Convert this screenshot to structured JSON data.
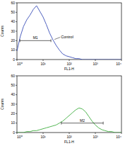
{
  "chart_data": [
    {
      "type": "line",
      "log": "x",
      "xlabel": "FL1-H",
      "ylabel": "Counts",
      "x": [
        1,
        1.33,
        1.78,
        2.37,
        3.16,
        4.22,
        5.62,
        7.5,
        10,
        13.3,
        17.8,
        23.7,
        31.6,
        42.2,
        56.2,
        75,
        100,
        133,
        178,
        237,
        316,
        422,
        562,
        750,
        1000,
        1330,
        1780,
        2370,
        3160,
        4220,
        5620,
        7500,
        10000
      ],
      "series": [
        {
          "name": "Control",
          "color": "#3b4fb8",
          "values": [
            9,
            24,
            35,
            42,
            47,
            53,
            57,
            51,
            45,
            37,
            28,
            21,
            15,
            10,
            6,
            4,
            3,
            2,
            1,
            1,
            0,
            0,
            0,
            0,
            0,
            0,
            0,
            0,
            0,
            0,
            0,
            0,
            0
          ]
        }
      ],
      "xlim": [
        1,
        10000
      ],
      "ylim": [
        0,
        60
      ],
      "xticks": [
        {
          "value": 1,
          "label": "10⁰"
        },
        {
          "value": 10,
          "label": "10¹"
        },
        {
          "value": 100,
          "label": "10²"
        },
        {
          "value": 1000,
          "label": "10³"
        },
        {
          "value": 10000,
          "label": "10⁴"
        }
      ],
      "yticks": [
        0,
        10,
        20,
        30,
        40,
        50,
        60
      ],
      "gates": [
        {
          "label": "M1",
          "x": [
            1.3,
            20
          ],
          "y": 20
        }
      ]
    },
    {
      "type": "line",
      "log": "x",
      "xlabel": "FL1-H",
      "ylabel": "Counts",
      "x": [
        1,
        1.33,
        1.78,
        2.37,
        3.16,
        4.22,
        5.62,
        7.5,
        10,
        13.3,
        17.8,
        23.7,
        31.6,
        42.2,
        56.2,
        75,
        100,
        133,
        178,
        237,
        316,
        422,
        562,
        750,
        1000,
        1330,
        1780,
        2370,
        3160,
        4220,
        5620,
        7500,
        10000
      ],
      "series": [
        {
          "color": "#3fae3f",
          "values": [
            0,
            0,
            0,
            1,
            1,
            2,
            2,
            3,
            4,
            5,
            6,
            7,
            8,
            10,
            12,
            15,
            18,
            21,
            24,
            26,
            25,
            22,
            17,
            12,
            8,
            5,
            3,
            2,
            1,
            1,
            0,
            0,
            0
          ]
        }
      ],
      "xlim": [
        1,
        10000
      ],
      "ylim": [
        0,
        60
      ],
      "xticks": [
        {
          "value": 1,
          "label": "10⁰"
        },
        {
          "value": 10,
          "label": "10¹"
        },
        {
          "value": 100,
          "label": "10²"
        },
        {
          "value": 1000,
          "label": "10³"
        },
        {
          "value": 10000,
          "label": "10⁴"
        }
      ],
      "yticks": [
        0,
        10,
        20,
        30,
        40,
        50,
        60
      ],
      "gates": [
        {
          "label": "M2",
          "x": [
            50,
            2000
          ],
          "y": 10
        }
      ]
    }
  ]
}
